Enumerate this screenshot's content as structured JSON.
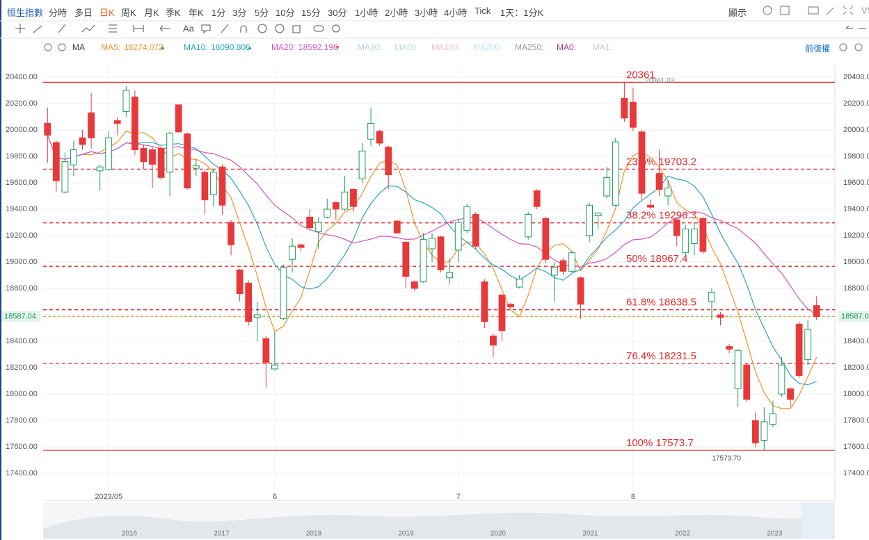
{
  "toolbar": {
    "tabs": [
      "恒生指數",
      "分時",
      "多日",
      "日K",
      "周K",
      "月K",
      "季K",
      "年K",
      "1分",
      "3分",
      "5分",
      "10分",
      "15分",
      "30分",
      "1小時",
      "2小時",
      "3小時",
      "4小時",
      "Tick",
      "1天：1分K"
    ],
    "active": "日K",
    "display": "顯示"
  },
  "ma_legend": {
    "label": "MA",
    "items": [
      {
        "name": "MA5:",
        "value": "18274.072",
        "trend": "▲",
        "color": "#f0922a"
      },
      {
        "name": "MA10:",
        "value": "18090.806",
        "trend": "▲",
        "color": "#2aa3c8"
      },
      {
        "name": "MA20:",
        "value": "18592.196",
        "trend": "▼",
        "color": "#d055c4"
      },
      {
        "name": "MA30:",
        "color": "#b9d2e6"
      },
      {
        "name": "MA50:",
        "color": "#b9e0cf"
      },
      {
        "name": "MA100:",
        "color": "#f2c3c3"
      },
      {
        "name": "MA200:",
        "color": "#bfe6f2"
      },
      {
        "name": "MA250:",
        "color": "#9a9a9a"
      },
      {
        "name": "MA0:",
        "color": "#9b3c9e"
      },
      {
        "name": "MA1:",
        "color": "#c8c8c8"
      }
    ],
    "adjust": "前復權"
  },
  "chart_data": {
    "type": "candlestick",
    "open": [
      20050,
      19905,
      19530,
      19735,
      19940,
      20130,
      19690,
      19700,
      20070,
      20140,
      20250,
      19860,
      19850,
      19860,
      19680,
      20190,
      19970,
      19710,
      19680,
      19510,
      19720,
      19300,
      18940,
      18840,
      18580,
      18420,
      18190,
      18570,
      19020,
      19130,
      19340,
      19230,
      19340,
      19450,
      19400,
      19550,
      19630,
      19930,
      19990,
      19870,
      19310,
      19150,
      18850,
      18850,
      19100,
      19190,
      18880,
      19090,
      19240,
      19360,
      18850,
      18440,
      18750,
      18680,
      18810,
      19190,
      19540,
      19330,
      18900,
      19010,
      18930,
      18880,
      19200,
      19350,
      19500,
      19430,
      20240,
      20210,
      19985,
      19430,
      19670,
      19500,
      19320,
      19070,
      19140,
      19330,
      18700,
      18600,
      18360,
      18040,
      18220,
      17800,
      17650,
      17770,
      18000,
      18040,
      18530,
      18260,
      18670
    ],
    "high": [
      20170,
      19920,
      19830,
      19920,
      20000,
      20280,
      19740,
      19990,
      20100,
      20330,
      20300,
      19890,
      19870,
      19880,
      19990,
      20190,
      19980,
      19780,
      19700,
      19700,
      19740,
      19320,
      18950,
      18860,
      18700,
      18440,
      18470,
      18980,
      19180,
      19140,
      19400,
      19340,
      19480,
      19460,
      19650,
      19560,
      19900,
      20170,
      20000,
      19880,
      19320,
      19160,
      18860,
      19220,
      19220,
      19200,
      19030,
      19330,
      19440,
      19380,
      18870,
      18460,
      18760,
      18690,
      18900,
      19380,
      19550,
      19340,
      19000,
      19030,
      19080,
      18890,
      19450,
      19380,
      19720,
      19940,
      20361.03,
      20320,
      20000,
      19470,
      19850,
      19620,
      19330,
      19280,
      19300,
      19340,
      18800,
      18620,
      18380,
      18340,
      18230,
      17860,
      17900,
      17950,
      18280,
      18050,
      18550,
      18560,
      18740
    ],
    "low": [
      19750,
      19530,
      19520,
      19650,
      19850,
      19860,
      19540,
      19690,
      19960,
      20100,
      19810,
      19700,
      19560,
      19620,
      19500,
      19980,
      19550,
      19650,
      19360,
      19420,
      19360,
      19050,
      18700,
      18520,
      18400,
      18050,
      18180,
      18560,
      18920,
      19080,
      19240,
      19100,
      19330,
      19320,
      19390,
      19380,
      19600,
      19880,
      19880,
      19550,
      19210,
      18800,
      18780,
      18840,
      19000,
      18920,
      18830,
      19000,
      19220,
      19100,
      18500,
      18280,
      18400,
      18650,
      18800,
      19170,
      19400,
      18990,
      18700,
      18900,
      18920,
      18570,
      19150,
      19250,
      19480,
      19420,
      20060,
      19990,
      19470,
      19400,
      19500,
      19430,
      19120,
      19040,
      19050,
      19060,
      18560,
      18520,
      18310,
      17900,
      17940,
      17600,
      17573.7,
      17750,
      17980,
      17900,
      18120,
      18220,
      18560
    ],
    "close": [
      19960,
      19615,
      19760,
      19850,
      19890,
      19940,
      19720,
      19940,
      20050,
      20300,
      19850,
      19760,
      19740,
      19640,
      19975,
      19985,
      19560,
      19730,
      19470,
      19680,
      19430,
      19130,
      18760,
      18550,
      18600,
      18240,
      18220,
      18960,
      19120,
      19110,
      19260,
      19300,
      19400,
      19400,
      19530,
      19420,
      19840,
      20050,
      19900,
      19660,
      19220,
      18890,
      18800,
      19170,
      19180,
      18940,
      18920,
      19300,
      19420,
      19120,
      18550,
      18370,
      18480,
      18660,
      18870,
      19360,
      19420,
      19020,
      18960,
      18930,
      19070,
      18680,
      19430,
      19370,
      19640,
      19910,
      20090,
      20020,
      19520,
      19415,
      19550,
      19560,
      19200,
      19250,
      19250,
      19080,
      18770,
      18580,
      18340,
      18330,
      17960,
      17630,
      17790,
      17850,
      18220,
      17960,
      18140,
      18490,
      18587.04
    ],
    "up_color": "#1a9a5a",
    "down_color": "#e8393a",
    "ylim": [
      17300,
      20484
    ],
    "yticks": [
      {
        "value": 17400,
        "label": "17400.00"
      },
      {
        "value": 17600,
        "label": "17600.00"
      },
      {
        "value": 17800,
        "label": "17800.00"
      },
      {
        "value": 18000,
        "label": "18000.00"
      },
      {
        "value": 18200,
        "label": "18200.00"
      },
      {
        "value": 18400,
        "label": "18400.00"
      },
      {
        "value": 18600,
        "label": "18600.00"
      },
      {
        "value": 18800,
        "label": "18800.00"
      },
      {
        "value": 19000,
        "label": "19000.00"
      },
      {
        "value": 19200,
        "label": "19200.00"
      },
      {
        "value": 19400,
        "label": "19400.00"
      },
      {
        "value": 19600,
        "label": "19600.00"
      },
      {
        "value": 19800,
        "label": "19800.00"
      },
      {
        "value": 20000,
        "label": "20000.00"
      },
      {
        "value": 20200,
        "label": "20200.00"
      },
      {
        "value": 20400,
        "label": "20400.00"
      }
    ],
    "xticks": [
      {
        "value": 7,
        "label": "2023/05"
      },
      {
        "value": 26,
        "label": "6"
      },
      {
        "value": 47,
        "label": "7"
      },
      {
        "value": 67,
        "label": "8"
      }
    ],
    "fib_levels": [
      {
        "value": 20361.03,
        "label": "20361"
      },
      {
        "value": 19703.2,
        "label": "23.6% 19703.2"
      },
      {
        "value": 19296.3,
        "label": "38.2% 19296.3"
      },
      {
        "value": 18967.4,
        "label": "50% 18967.4"
      },
      {
        "value": 18638.5,
        "label": "61.8% 18638.5"
      },
      {
        "value": 18231.5,
        "label": "76.4% 18231.5"
      },
      {
        "value": 17573.7,
        "label": "100% 17573.7"
      }
    ],
    "high_label": "20361.03",
    "low_label": "17573.70",
    "last_price": {
      "value": 18587.04,
      "label": "18587.04"
    },
    "navigator_years": [
      "2016",
      "2017",
      "2018",
      "2019",
      "2020",
      "2021",
      "2022",
      "2023"
    ]
  }
}
